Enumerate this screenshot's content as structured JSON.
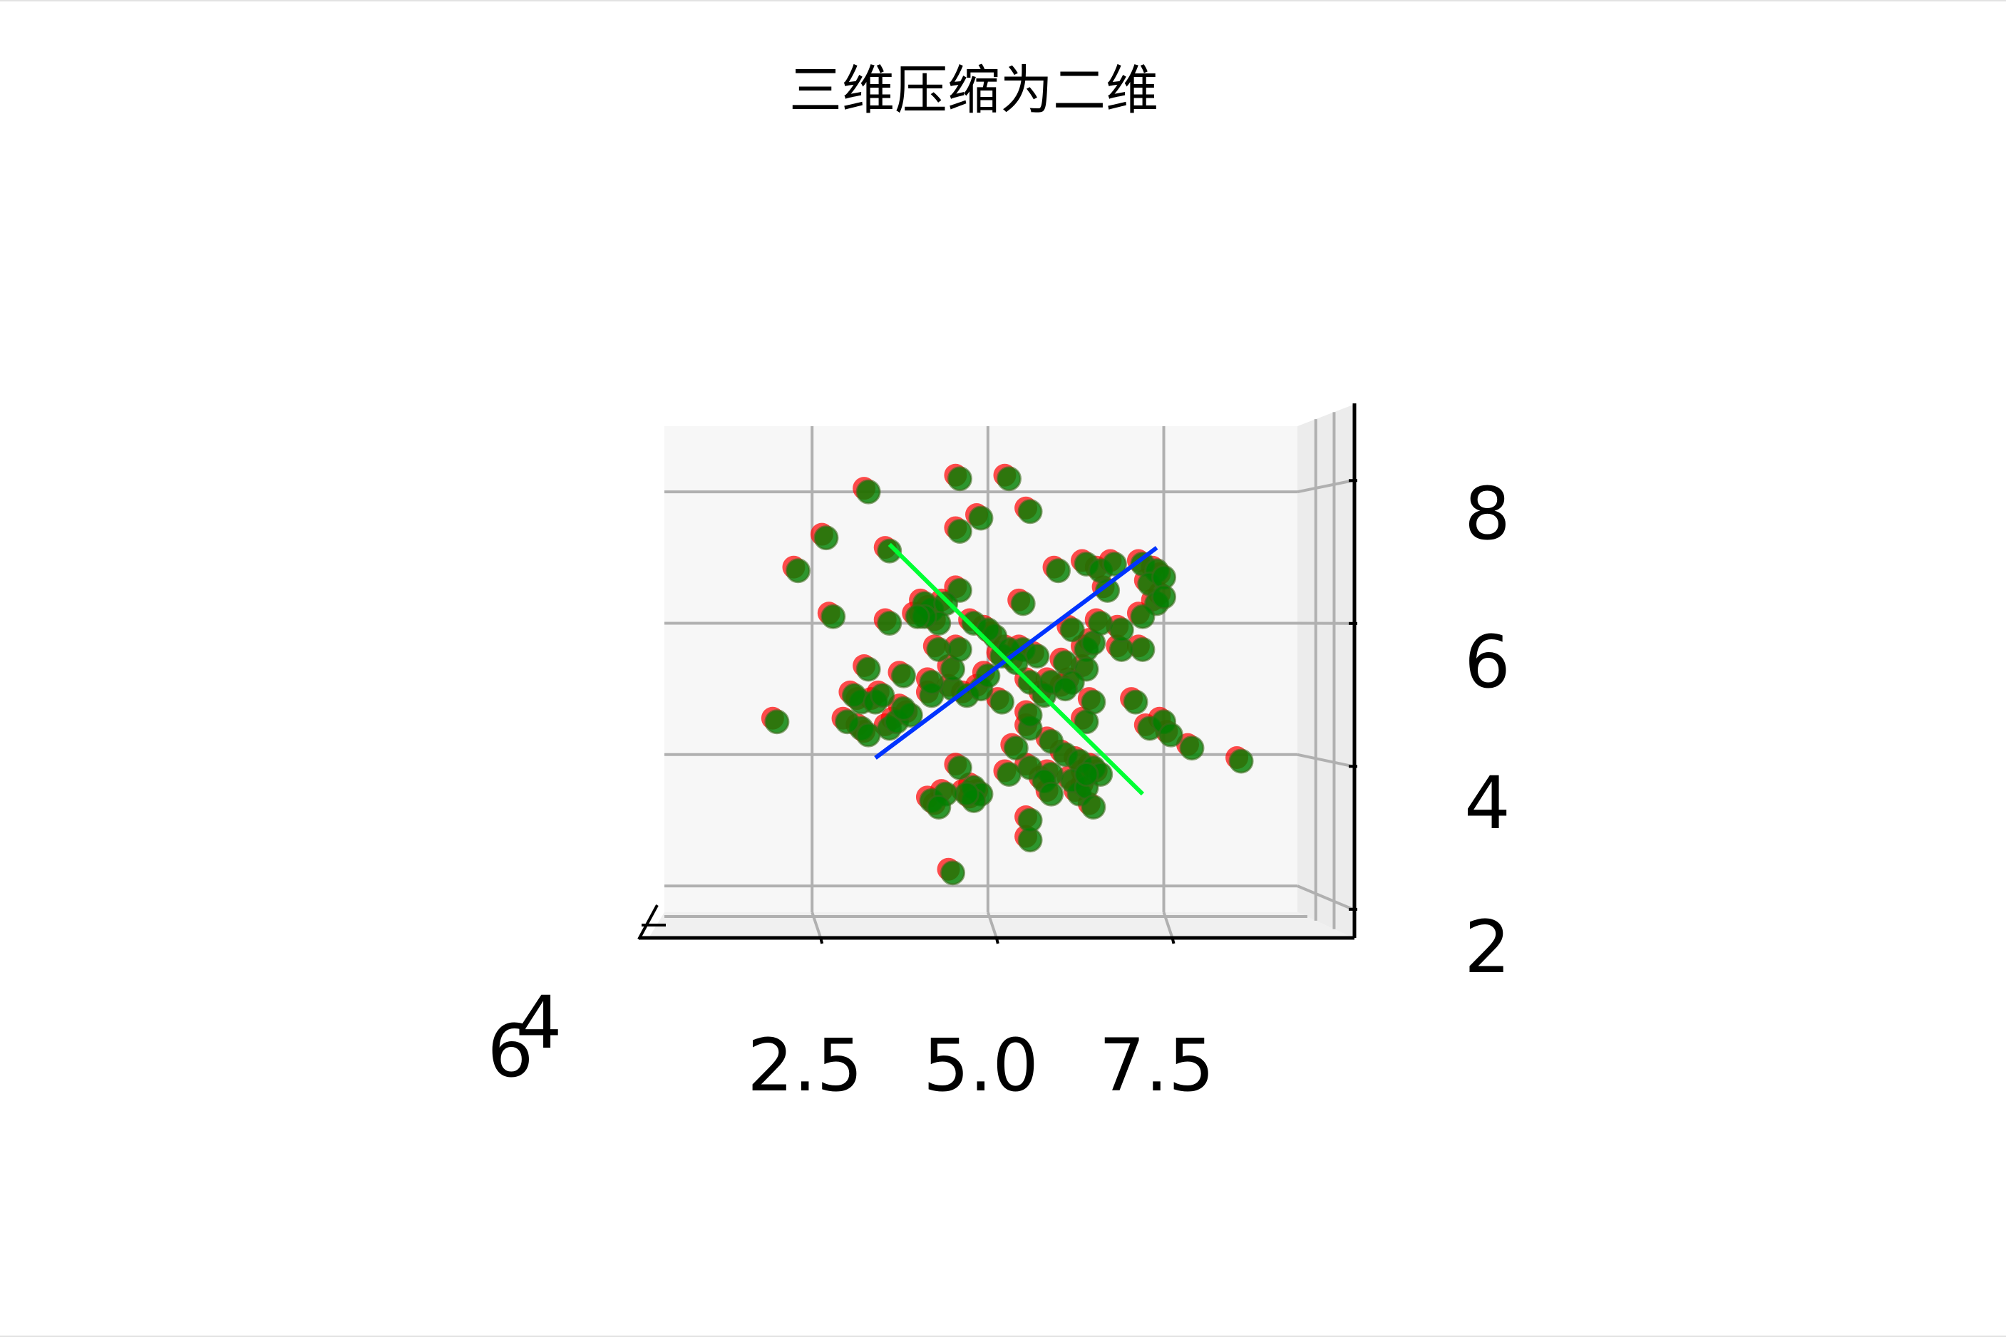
{
  "chart_data": {
    "type": "scatter",
    "projection": "3d",
    "title": "三维压缩为二维",
    "xlabel": "",
    "ylabel": "",
    "zlabel": "",
    "x_ticks": [
      "2.5",
      "5.0",
      "7.5"
    ],
    "y_ticks": [
      "4",
      "6"
    ],
    "z_ticks": [
      "2",
      "4",
      "6",
      "8"
    ],
    "xlim": [
      0.4,
      9.4
    ],
    "zlim": [
      1.6,
      9.0
    ],
    "grid": true,
    "legend": "none",
    "colors": {
      "original": "#ff0000",
      "projected": "#008000",
      "component_1": "#0033ff",
      "component_2": "#00ff33",
      "pane": "#f7f7f7",
      "gridline": "#b0b0b0"
    },
    "series": [
      {
        "role": "original",
        "color": "#ff0000",
        "points": [
          [
            2.0,
            4.5
          ],
          [
            3.3,
            8.0
          ],
          [
            4.6,
            8.2
          ],
          [
            5.3,
            8.2
          ],
          [
            5.6,
            7.7
          ],
          [
            4.6,
            7.4
          ],
          [
            4.9,
            7.6
          ],
          [
            2.7,
            7.3
          ],
          [
            3.6,
            7.1
          ],
          [
            2.3,
            6.8
          ],
          [
            2.8,
            6.1
          ],
          [
            3.6,
            6.0
          ],
          [
            4.6,
            6.5
          ],
          [
            5.5,
            6.3
          ],
          [
            4.8,
            6.0
          ],
          [
            5.1,
            5.8
          ],
          [
            5.5,
            5.6
          ],
          [
            5.2,
            5.5
          ],
          [
            5.7,
            5.5
          ],
          [
            6.1,
            5.4
          ],
          [
            6.4,
            5.6
          ],
          [
            6.0,
            6.8
          ],
          [
            6.4,
            6.9
          ],
          [
            6.6,
            6.8
          ],
          [
            6.8,
            6.9
          ],
          [
            7.2,
            6.9
          ],
          [
            7.4,
            6.8
          ],
          [
            7.3,
            6.6
          ],
          [
            7.5,
            6.7
          ],
          [
            6.7,
            6.5
          ],
          [
            7.4,
            6.3
          ],
          [
            7.5,
            6.4
          ],
          [
            7.2,
            6.1
          ],
          [
            7.2,
            5.6
          ],
          [
            6.9,
            5.6
          ],
          [
            6.4,
            5.3
          ],
          [
            6.2,
            5.1
          ],
          [
            5.8,
            4.9
          ],
          [
            5.6,
            5.1
          ],
          [
            5.9,
            5.1
          ],
          [
            6.1,
            5.0
          ],
          [
            6.5,
            4.8
          ],
          [
            7.1,
            4.8
          ],
          [
            7.3,
            4.4
          ],
          [
            7.5,
            4.5
          ],
          [
            7.6,
            4.3
          ],
          [
            6.4,
            4.5
          ],
          [
            5.6,
            4.4
          ],
          [
            5.9,
            4.2
          ],
          [
            5.4,
            4.1
          ],
          [
            6.1,
            4.0
          ],
          [
            6.3,
            3.9
          ],
          [
            5.9,
            3.7
          ],
          [
            5.6,
            3.8
          ],
          [
            5.8,
            3.6
          ],
          [
            5.3,
            3.7
          ],
          [
            4.6,
            3.8
          ],
          [
            4.8,
            3.5
          ],
          [
            4.9,
            3.4
          ],
          [
            4.8,
            3.3
          ],
          [
            4.7,
            3.4
          ],
          [
            4.2,
            3.3
          ],
          [
            5.9,
            3.4
          ],
          [
            6.3,
            3.4
          ],
          [
            6.2,
            3.6
          ],
          [
            6.4,
            3.5
          ],
          [
            6.5,
            3.8
          ],
          [
            6.6,
            3.7
          ],
          [
            6.4,
            3.7
          ],
          [
            6.5,
            3.2
          ],
          [
            7.9,
            4.1
          ],
          [
            8.6,
            3.9
          ],
          [
            4.5,
            2.2
          ],
          [
            5.6,
            2.7
          ],
          [
            5.6,
            3.0
          ],
          [
            4.4,
            3.4
          ],
          [
            4.3,
            3.2
          ],
          [
            3.2,
            4.8
          ],
          [
            3.2,
            4.4
          ],
          [
            3.3,
            4.3
          ],
          [
            3.6,
            4.4
          ],
          [
            3.7,
            4.5
          ],
          [
            3.9,
            4.6
          ],
          [
            4.2,
            4.9
          ],
          [
            4.5,
            5.0
          ],
          [
            4.7,
            4.9
          ],
          [
            4.9,
            5.0
          ],
          [
            5.2,
            4.8
          ],
          [
            5.6,
            4.6
          ],
          [
            3.8,
            5.2
          ],
          [
            4.2,
            5.1
          ],
          [
            4.5,
            5.3
          ],
          [
            4.3,
            5.6
          ],
          [
            3.3,
            5.3
          ],
          [
            3.1,
            4.9
          ],
          [
            3.4,
            4.8
          ],
          [
            3.8,
            4.7
          ],
          [
            3.5,
            4.9
          ],
          [
            4.6,
            5.6
          ],
          [
            5.0,
            5.2
          ],
          [
            5.3,
            5.6
          ],
          [
            5.4,
            5.4
          ],
          [
            5.0,
            5.9
          ],
          [
            4.2,
            6.2
          ],
          [
            4.1,
            6.3
          ],
          [
            4.4,
            6.3
          ],
          [
            4.3,
            6.0
          ],
          [
            4.1,
            6.1
          ],
          [
            4.0,
            6.1
          ],
          [
            6.2,
            5.9
          ],
          [
            6.5,
            5.7
          ],
          [
            6.6,
            6.0
          ],
          [
            6.9,
            5.9
          ],
          [
            3.0,
            4.5
          ]
        ]
      },
      {
        "role": "projected",
        "color": "#008000",
        "points": [
          [
            2.0,
            4.5
          ],
          [
            3.3,
            8.0
          ],
          [
            4.6,
            8.2
          ],
          [
            5.3,
            8.2
          ],
          [
            5.6,
            7.7
          ],
          [
            4.6,
            7.4
          ],
          [
            4.9,
            7.6
          ],
          [
            2.7,
            7.3
          ],
          [
            3.6,
            7.1
          ],
          [
            2.3,
            6.8
          ],
          [
            2.8,
            6.1
          ],
          [
            3.6,
            6.0
          ],
          [
            4.6,
            6.5
          ],
          [
            5.5,
            6.3
          ],
          [
            4.8,
            6.0
          ],
          [
            5.1,
            5.8
          ],
          [
            5.5,
            5.6
          ],
          [
            5.2,
            5.5
          ],
          [
            5.7,
            5.5
          ],
          [
            6.1,
            5.4
          ],
          [
            6.4,
            5.6
          ],
          [
            6.0,
            6.8
          ],
          [
            6.4,
            6.9
          ],
          [
            6.6,
            6.8
          ],
          [
            6.8,
            6.9
          ],
          [
            7.2,
            6.9
          ],
          [
            7.4,
            6.8
          ],
          [
            7.3,
            6.6
          ],
          [
            7.5,
            6.7
          ],
          [
            6.7,
            6.5
          ],
          [
            7.4,
            6.3
          ],
          [
            7.5,
            6.4
          ],
          [
            7.2,
            6.1
          ],
          [
            7.2,
            5.6
          ],
          [
            6.9,
            5.6
          ],
          [
            6.4,
            5.3
          ],
          [
            6.2,
            5.1
          ],
          [
            5.8,
            4.9
          ],
          [
            5.6,
            5.1
          ],
          [
            5.9,
            5.1
          ],
          [
            6.1,
            5.0
          ],
          [
            6.5,
            4.8
          ],
          [
            7.1,
            4.8
          ],
          [
            7.3,
            4.4
          ],
          [
            7.5,
            4.5
          ],
          [
            7.6,
            4.3
          ],
          [
            6.4,
            4.5
          ],
          [
            5.6,
            4.4
          ],
          [
            5.9,
            4.2
          ],
          [
            5.4,
            4.1
          ],
          [
            6.1,
            4.0
          ],
          [
            6.3,
            3.9
          ],
          [
            5.9,
            3.7
          ],
          [
            5.6,
            3.8
          ],
          [
            5.8,
            3.6
          ],
          [
            5.3,
            3.7
          ],
          [
            4.6,
            3.8
          ],
          [
            4.8,
            3.5
          ],
          [
            4.9,
            3.4
          ],
          [
            4.8,
            3.3
          ],
          [
            4.7,
            3.4
          ],
          [
            4.2,
            3.3
          ],
          [
            5.9,
            3.4
          ],
          [
            6.3,
            3.4
          ],
          [
            6.2,
            3.6
          ],
          [
            6.4,
            3.5
          ],
          [
            6.5,
            3.8
          ],
          [
            6.6,
            3.7
          ],
          [
            6.4,
            3.7
          ],
          [
            6.5,
            3.2
          ],
          [
            7.9,
            4.1
          ],
          [
            8.6,
            3.9
          ],
          [
            4.5,
            2.2
          ],
          [
            5.6,
            2.7
          ],
          [
            5.6,
            3.0
          ],
          [
            4.4,
            3.4
          ],
          [
            4.3,
            3.2
          ],
          [
            3.2,
            4.8
          ],
          [
            3.2,
            4.4
          ],
          [
            3.3,
            4.3
          ],
          [
            3.6,
            4.4
          ],
          [
            3.7,
            4.5
          ],
          [
            3.9,
            4.6
          ],
          [
            4.2,
            4.9
          ],
          [
            4.5,
            5.0
          ],
          [
            4.7,
            4.9
          ],
          [
            4.9,
            5.0
          ],
          [
            5.2,
            4.8
          ],
          [
            5.6,
            4.6
          ],
          [
            3.8,
            5.2
          ],
          [
            4.2,
            5.1
          ],
          [
            4.5,
            5.3
          ],
          [
            4.3,
            5.6
          ],
          [
            3.3,
            5.3
          ],
          [
            3.1,
            4.9
          ],
          [
            3.4,
            4.8
          ],
          [
            3.8,
            4.7
          ],
          [
            3.5,
            4.9
          ],
          [
            4.6,
            5.6
          ],
          [
            5.0,
            5.2
          ],
          [
            5.3,
            5.6
          ],
          [
            5.4,
            5.4
          ],
          [
            5.0,
            5.9
          ],
          [
            4.2,
            6.2
          ],
          [
            4.1,
            6.3
          ],
          [
            4.4,
            6.3
          ],
          [
            4.3,
            6.0
          ],
          [
            4.1,
            6.1
          ],
          [
            4.0,
            6.1
          ],
          [
            6.2,
            5.9
          ],
          [
            6.5,
            5.7
          ],
          [
            6.6,
            6.0
          ],
          [
            6.9,
            5.9
          ],
          [
            3.0,
            4.5
          ]
        ]
      }
    ],
    "lines": [
      {
        "role": "component_1",
        "color": "#0033ff",
        "from": [
          3.4,
          3.95
        ],
        "to": [
          7.4,
          7.15
        ]
      },
      {
        "role": "component_2",
        "color": "#00ff33",
        "from": [
          3.6,
          7.2
        ],
        "to": [
          7.2,
          3.4
        ]
      }
    ]
  }
}
